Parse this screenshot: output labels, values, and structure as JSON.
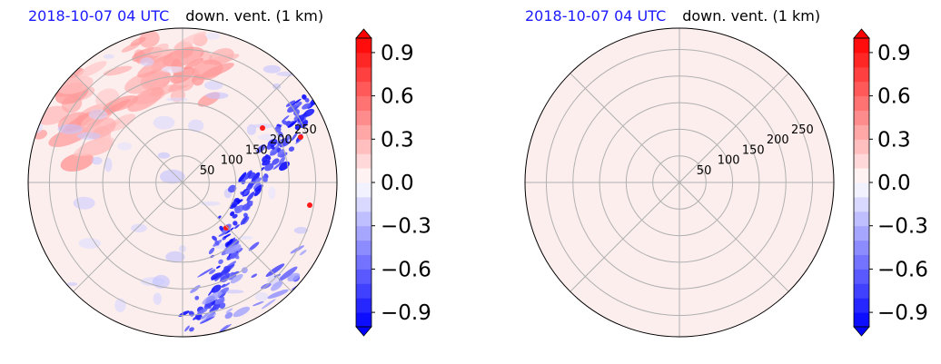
{
  "colors": {
    "date_text": "#1a1aff",
    "ring": "#b0b0b0",
    "background_field": "#fdeeee",
    "cmap_low": "#0000ff",
    "cmap_mid": "#ffffff",
    "cmap_high": "#ff0000"
  },
  "chart_data": [
    {
      "type": "heatmap",
      "projection": "polar",
      "date": "2018-10-07 04 UTC",
      "variable": "down. vent. (1 km)",
      "range_rings": [
        50,
        100,
        150,
        200,
        250
      ],
      "range_max": 290,
      "colorbar": {
        "vmin": -1.0,
        "vmax": 1.0,
        "levels": 20,
        "extend": "both",
        "ticks": [
          -0.9,
          -0.6,
          -0.3,
          0.0,
          0.3,
          0.6,
          0.9
        ],
        "tick_labels": [
          "−0.9",
          "−0.6",
          "−0.3",
          "0.0",
          "0.3",
          "0.6",
          "0.9"
        ]
      },
      "field": "mixed",
      "features": [
        {
          "kind": "negative_band",
          "description_value": -0.5
        },
        {
          "kind": "positive_patch",
          "description_value": 0.3
        }
      ]
    },
    {
      "type": "heatmap",
      "projection": "polar",
      "date": "2018-10-07 04 UTC",
      "variable": "down. vent. (1 km)",
      "range_rings": [
        50,
        100,
        150,
        200,
        250
      ],
      "range_max": 290,
      "colorbar": {
        "vmin": -1.0,
        "vmax": 1.0,
        "levels": 20,
        "extend": "both",
        "ticks": [
          -0.9,
          -0.6,
          -0.3,
          0.0,
          0.3,
          0.6,
          0.9
        ],
        "tick_labels": [
          "−0.9",
          "−0.6",
          "−0.3",
          "0.0",
          "0.3",
          "0.6",
          "0.9"
        ]
      },
      "field": "uniform",
      "uniform_value": 0.05
    }
  ]
}
